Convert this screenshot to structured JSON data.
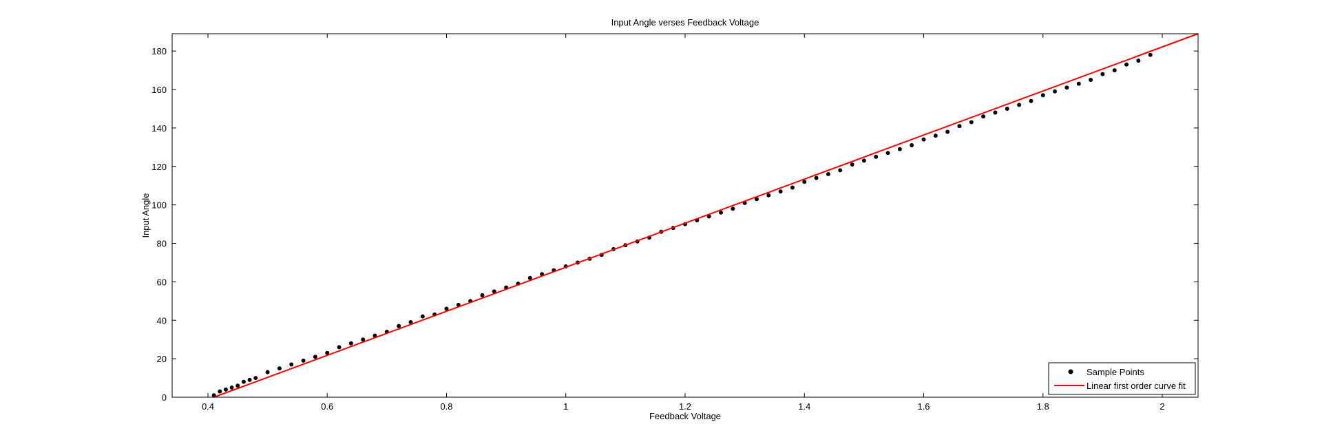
{
  "chart_data": {
    "type": "scatter",
    "title": "Input Angle verses Feedback Voltage",
    "xlabel": "Feedback Voltage",
    "ylabel": "Input Angle",
    "xlim": [
      0.34,
      2.06
    ],
    "ylim": [
      0,
      189
    ],
    "xticks": [
      0.4,
      0.6,
      0.8,
      1,
      1.2,
      1.4,
      1.6,
      1.8,
      2
    ],
    "xtick_labels": [
      "0.4",
      "0.6",
      "0.8",
      "1",
      "1.2",
      "1.4",
      "1.6",
      "1.8",
      "2"
    ],
    "yticks": [
      0,
      20,
      40,
      60,
      80,
      100,
      120,
      140,
      160,
      180
    ],
    "ytick_labels": [
      "0",
      "20",
      "40",
      "60",
      "80",
      "100",
      "120",
      "140",
      "160",
      "180"
    ],
    "grid": false,
    "legend_position": "bottom-right",
    "series": [
      {
        "name": "Sample Points",
        "kind": "scatter",
        "color": "#000000",
        "x": [
          0.41,
          0.42,
          0.43,
          0.44,
          0.45,
          0.46,
          0.47,
          0.48,
          0.5,
          0.52,
          0.54,
          0.56,
          0.58,
          0.6,
          0.62,
          0.64,
          0.66,
          0.68,
          0.7,
          0.72,
          0.74,
          0.76,
          0.78,
          0.8,
          0.82,
          0.84,
          0.86,
          0.88,
          0.9,
          0.92,
          0.94,
          0.96,
          0.98,
          1.0,
          1.02,
          1.04,
          1.06,
          1.08,
          1.1,
          1.12,
          1.14,
          1.16,
          1.18,
          1.2,
          1.22,
          1.24,
          1.26,
          1.28,
          1.3,
          1.32,
          1.34,
          1.36,
          1.38,
          1.4,
          1.42,
          1.44,
          1.46,
          1.48,
          1.5,
          1.52,
          1.54,
          1.56,
          1.58,
          1.6,
          1.62,
          1.64,
          1.66,
          1.68,
          1.7,
          1.72,
          1.74,
          1.76,
          1.78,
          1.8,
          1.82,
          1.84,
          1.86,
          1.88,
          1.9,
          1.92,
          1.94,
          1.96,
          1.98
        ],
        "y": [
          1,
          3,
          4,
          5,
          6,
          8,
          9,
          10,
          13,
          15,
          17,
          19,
          21,
          23,
          26,
          28,
          30,
          32,
          34,
          37,
          39,
          42,
          43,
          46,
          48,
          50,
          53,
          55,
          57,
          59,
          62,
          64,
          66,
          68,
          70,
          72,
          74,
          77,
          79,
          81,
          83,
          86,
          88,
          90,
          92,
          94,
          96,
          98,
          101,
          103,
          105,
          107,
          109,
          112,
          114,
          116,
          118,
          121,
          123,
          125,
          127,
          129,
          131,
          134,
          136,
          138,
          141,
          143,
          146,
          148,
          150,
          152,
          154,
          157,
          159,
          161,
          163,
          165,
          168,
          170,
          173,
          175,
          178
        ]
      },
      {
        "name": "Linear first order curve fit",
        "kind": "line",
        "color": "#ff0000",
        "x": [
          0.41,
          2.06
        ],
        "y": [
          0,
          189
        ]
      }
    ]
  }
}
